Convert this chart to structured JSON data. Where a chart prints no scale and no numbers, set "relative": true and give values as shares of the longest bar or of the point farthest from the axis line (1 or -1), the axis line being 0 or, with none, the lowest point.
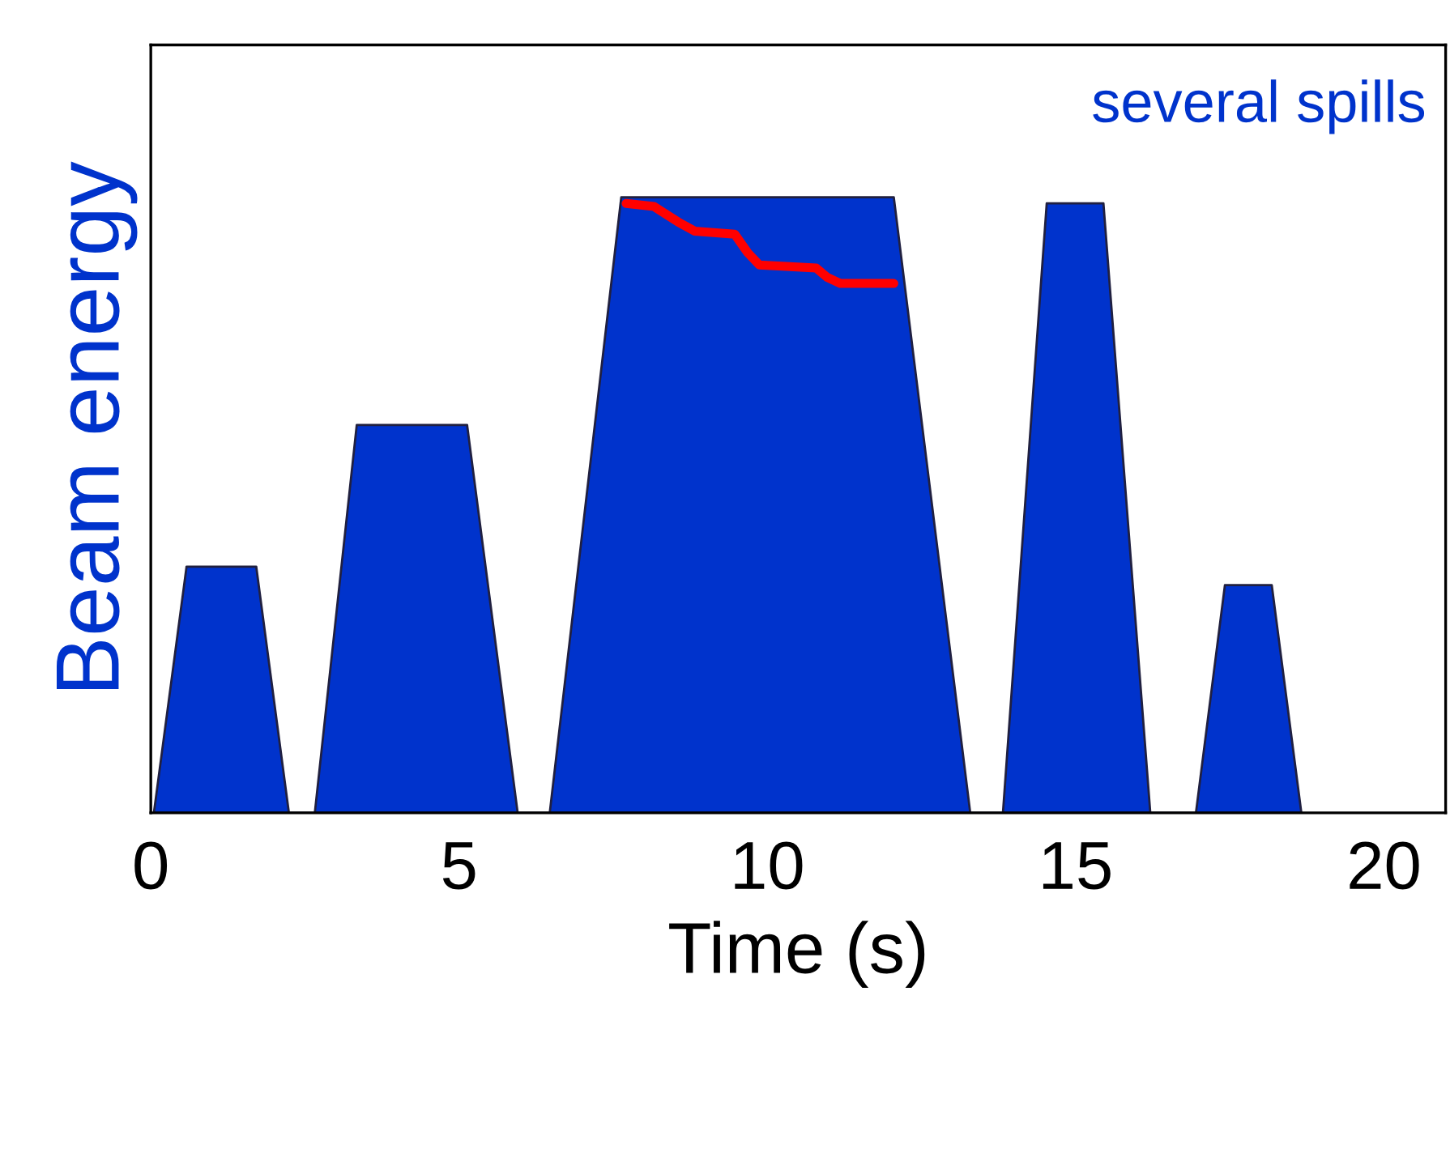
{
  "chart_data": {
    "type": "area",
    "relative": true,
    "xlabel": "Time (s)",
    "ylabel": "Beam energy",
    "annotations": [
      "several spills"
    ],
    "xlim": [
      0,
      21
    ],
    "xticks": [
      0,
      5,
      10,
      15,
      20
    ],
    "tick_labels": "x",
    "grid": false,
    "legend": false,
    "series": [
      {
        "color": "#0033cc",
        "x": [
          0.05,
          0.58,
          1.71,
          2.24,
          2.66,
          3.34,
          5.13,
          5.95,
          6.47,
          7.63,
          12.05,
          13.29,
          13.82,
          14.53,
          15.45,
          16.21,
          16.95,
          17.42,
          18.18,
          18.66
        ],
        "values": [
          0,
          0.4,
          0.4,
          0,
          0,
          0.63,
          0.63,
          0,
          0,
          1,
          1,
          0,
          0,
          0.99,
          0.99,
          0,
          0,
          0.37,
          0.37,
          0
        ]
      },
      {
        "type": "line",
        "color": "#ff0000",
        "x": [
          7.71,
          8.16,
          8.55,
          8.82,
          9.47,
          9.68,
          9.87,
          10.79,
          10.97,
          11.18,
          12.05
        ],
        "values": [
          0.99,
          0.985,
          0.96,
          0.945,
          0.94,
          0.91,
          0.89,
          0.885,
          0.87,
          0.86,
          0.86
        ]
      }
    ]
  }
}
